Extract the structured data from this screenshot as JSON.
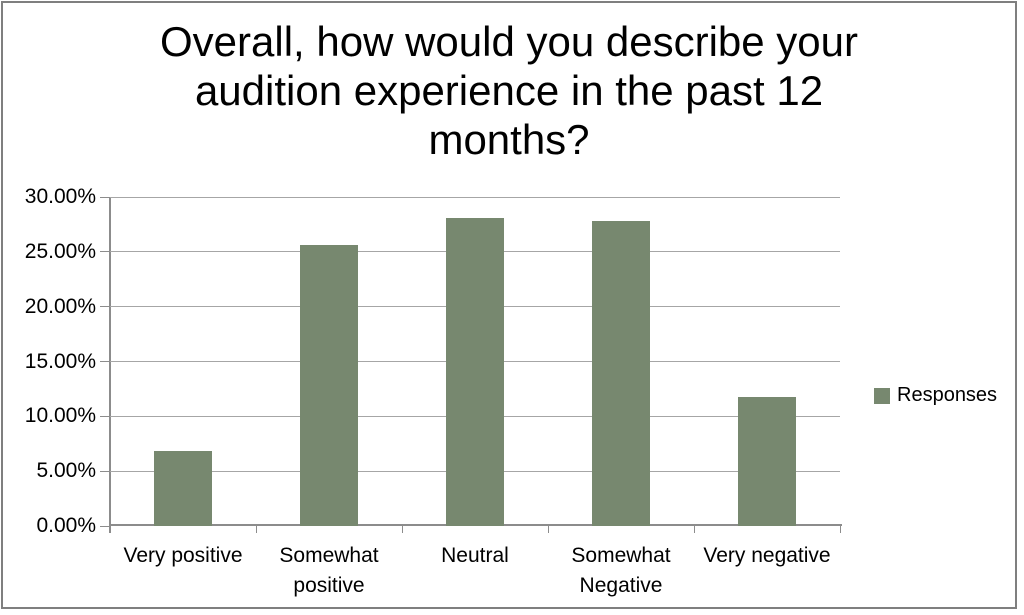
{
  "title_lines": [
    "Overall, how would you describe your",
    "audition experience in the past 12",
    "months?"
  ],
  "legend": {
    "label": "Responses",
    "swatch_color": "#77886f"
  },
  "colors": {
    "bar": "#77886f",
    "gridline": "#a6a6a6",
    "axis": "#8c8c8c",
    "frame_border": "#7f7f7f",
    "text": "#000000",
    "background": "#ffffff"
  },
  "chart_data": {
    "type": "bar",
    "title": "Overall, how would you describe your audition experience in the past 12 months?",
    "categories": [
      "Very positive",
      "Somewhat positive",
      "Neutral",
      "Somewhat Negative",
      "Very negative"
    ],
    "series": [
      {
        "name": "Responses",
        "color": "#77886f",
        "values": [
          6.8,
          25.6,
          28.1,
          27.8,
          11.75
        ]
      }
    ],
    "xlabel": "",
    "ylabel": "",
    "ylim": [
      0,
      30
    ],
    "ytick_step": 5,
    "ytick_labels": [
      "0.00%",
      "5.00%",
      "10.00%",
      "15.00%",
      "20.00%",
      "25.00%",
      "30.00%"
    ],
    "grid": true,
    "legend_position": "right",
    "legend_entries": [
      "Responses"
    ]
  }
}
